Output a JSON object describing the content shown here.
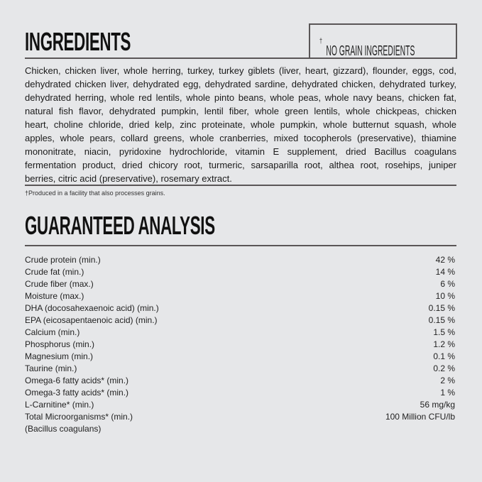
{
  "ingredients": {
    "title": "INGREDIENTS",
    "badge": "NO GRAIN INGREDIENTS",
    "badge_mark": "†",
    "lines": [
      "Chicken, chicken liver, whole herring, turkey, turkey giblets (liver, heart, gizzard), flounder, eggs, cod,",
      "dehydrated chicken liver, dehydrated egg, dehydrated sardine, dehydrated chicken, dehydrated turkey,",
      "dehydrated herring, whole red lentils, whole pinto beans, whole peas, whole navy beans, chicken fat,",
      "natural fish flavor, dehydrated pumpkin, lentil fiber, whole green lentils, whole chickpeas, chicken",
      "heart, choline chloride, dried kelp, zinc proteinate, whole pumpkin, whole butternut squash, whole",
      "apples, whole pears, collard greens, whole cranberries, mixed tocopherols (preservative), thiamine",
      "mononitrate, niacin, pyridoxine hydrochloride, vitamin E supplement, dried Bacillus coagulans",
      "fermentation product, dried chicory root, turmeric, sarsaparilla root, althea root, rosehips, juniper",
      "berries, citric acid (preservative), rosemary extract."
    ],
    "footnote": "†Produced in a facility that also processes grains."
  },
  "analysis": {
    "title": "GUARANTEED ANALYSIS",
    "rows": [
      {
        "label": "Crude protein (min.)",
        "value": "42 %"
      },
      {
        "label": "Crude fat (min.)",
        "value": "14 %"
      },
      {
        "label": "Crude fiber (max.)",
        "value": "6 %"
      },
      {
        "label": "Moisture (max.)",
        "value": "10 %"
      },
      {
        "label": "DHA (docosahexaenoic acid) (min.)",
        "value": "0.15 %"
      },
      {
        "label": "EPA (eicosapentaenoic acid) (min.)",
        "value": "0.15 %"
      },
      {
        "label": "Calcium (min.)",
        "value": "1.5 %"
      },
      {
        "label": "Phosphorus (min.)",
        "value": "1.2 %"
      },
      {
        "label": "Magnesium (min.)",
        "value": "0.1 %"
      },
      {
        "label": "Taurine (min.)",
        "value": "0.2 %"
      },
      {
        "label": "Omega-6 fatty acids* (min.)",
        "value": "2 %"
      },
      {
        "label": "Omega-3 fatty acids* (min.)",
        "value": "1 %"
      },
      {
        "label": "L-Carnitine* (min.)",
        "value": "56 mg/kg"
      },
      {
        "label": "Total Microorganisms* (min.)",
        "value": "100 Million CFU/lb"
      },
      {
        "label": "(Bacillus coagulans)",
        "value": ""
      }
    ]
  }
}
